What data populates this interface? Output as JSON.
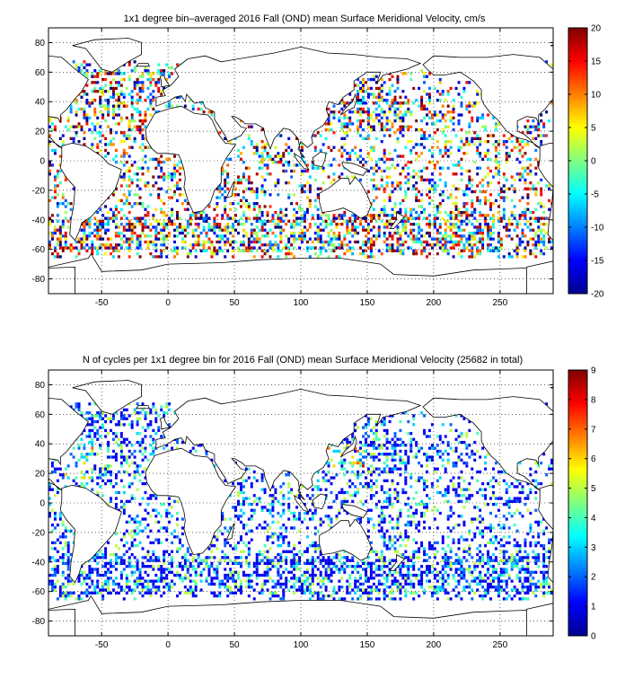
{
  "chart_data": [
    {
      "type": "heatmap",
      "title": "1x1 degree bin–averaged 2016 Fall (OND) mean Surface Meridional Velocity, cm/s",
      "xlabel": "",
      "ylabel": "",
      "xlim": [
        -90,
        290
      ],
      "ylim": [
        -90,
        90
      ],
      "xticks": [
        -50,
        0,
        50,
        100,
        150,
        200,
        250
      ],
      "yticks": [
        80,
        60,
        40,
        20,
        0,
        -20,
        -40,
        -60,
        -80
      ],
      "grid": true,
      "colorbar": {
        "min": -20,
        "max": 20,
        "ticks": [
          20,
          15,
          10,
          5,
          0,
          -5,
          -10,
          -15,
          -20
        ]
      },
      "colormap": "jet"
    },
    {
      "type": "heatmap",
      "title": "N of cycles per 1x1 degree bin for 2016 Fall (OND) mean Surface Meridional Velocity (25682 in total)",
      "xlabel": "",
      "ylabel": "",
      "xlim": [
        -90,
        290
      ],
      "ylim": [
        -90,
        90
      ],
      "xticks": [
        -50,
        0,
        50,
        100,
        150,
        200,
        250
      ],
      "yticks": [
        80,
        60,
        40,
        20,
        0,
        -20,
        -40,
        -60,
        -80
      ],
      "grid": true,
      "colorbar": {
        "min": 0,
        "max": 9,
        "ticks": [
          9,
          8,
          7,
          6,
          5,
          4,
          3,
          2,
          1,
          0
        ]
      },
      "colormap": "jet"
    }
  ]
}
